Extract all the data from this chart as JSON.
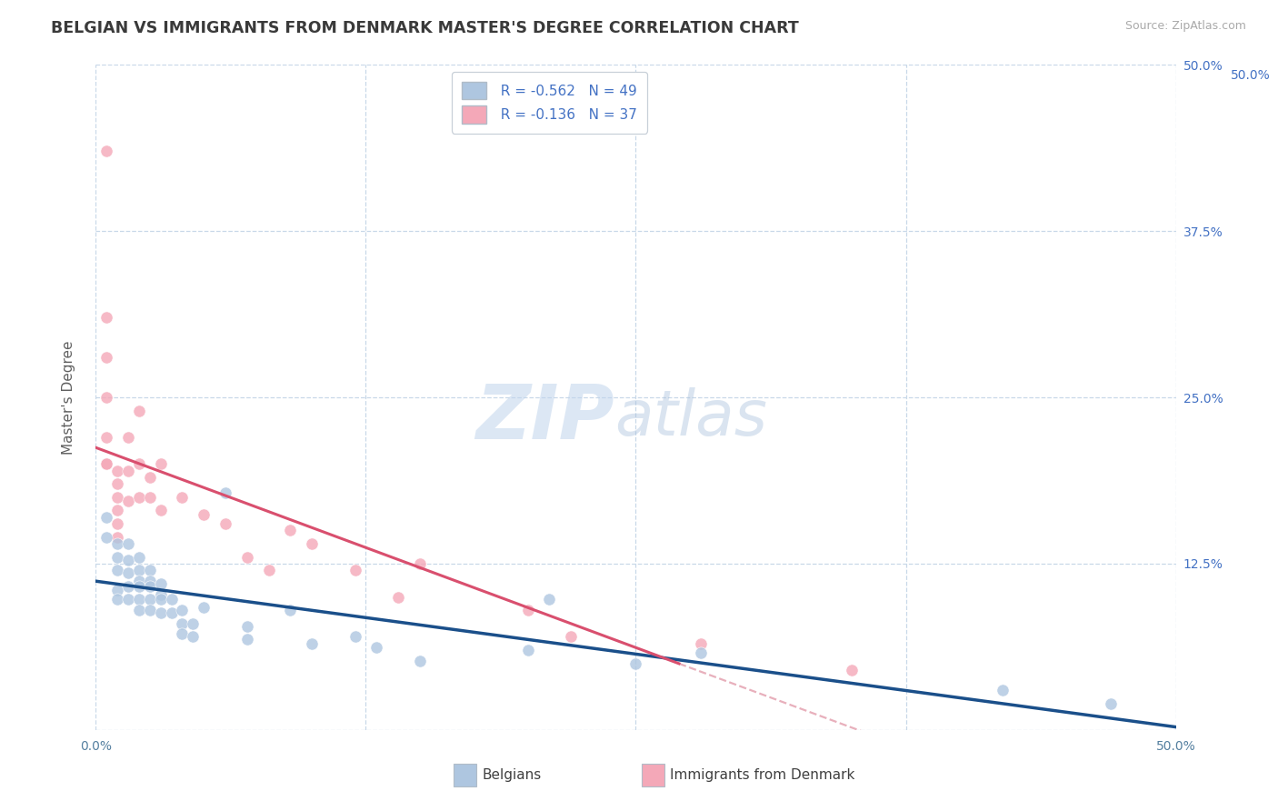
{
  "title": "BELGIAN VS IMMIGRANTS FROM DENMARK MASTER'S DEGREE CORRELATION CHART",
  "source": "Source: ZipAtlas.com",
  "ylabel": "Master's Degree",
  "xlim": [
    0.0,
    0.5
  ],
  "ylim": [
    0.0,
    0.5
  ],
  "xtick_values": [
    0.0,
    0.125,
    0.25,
    0.375,
    0.5
  ],
  "xtick_show_labels": [
    true,
    false,
    false,
    false,
    true
  ],
  "ytick_values": [
    0.0,
    0.125,
    0.25,
    0.375,
    0.5
  ],
  "right_ytick_values": [
    0.125,
    0.25,
    0.375,
    0.5
  ],
  "legend_R1": "R = -0.562",
  "legend_N1": "N = 49",
  "legend_R2": "R = -0.136",
  "legend_N2": "N = 37",
  "color_belgian": "#aec6e0",
  "color_denmark": "#f4a8b8",
  "line_color_belgian": "#1a4f8a",
  "line_color_denmark_solid": "#d94f6e",
  "line_color_denmark_dash": "#e8b0bc",
  "background_color": "#ffffff",
  "grid_color": "#c8d8e8",
  "title_color": "#3a3a3a",
  "axis_label_color": "#606060",
  "right_tick_color": "#4472c4",
  "legend_border_color": "#c8d0d8",
  "legend_text_color": "#4472c4",
  "bottom_label_color": "#404040",
  "belgians_label": "Belgians",
  "denmark_label": "Immigrants from Denmark",
  "belgians_x": [
    0.005,
    0.005,
    0.01,
    0.01,
    0.01,
    0.01,
    0.01,
    0.015,
    0.015,
    0.015,
    0.015,
    0.015,
    0.02,
    0.02,
    0.02,
    0.02,
    0.02,
    0.02,
    0.025,
    0.025,
    0.025,
    0.025,
    0.025,
    0.03,
    0.03,
    0.03,
    0.03,
    0.035,
    0.035,
    0.04,
    0.04,
    0.04,
    0.045,
    0.045,
    0.05,
    0.06,
    0.07,
    0.07,
    0.09,
    0.1,
    0.12,
    0.13,
    0.15,
    0.2,
    0.21,
    0.25,
    0.28,
    0.42,
    0.47
  ],
  "belgians_y": [
    0.145,
    0.16,
    0.14,
    0.13,
    0.12,
    0.105,
    0.098,
    0.14,
    0.128,
    0.118,
    0.108,
    0.098,
    0.13,
    0.12,
    0.112,
    0.108,
    0.098,
    0.09,
    0.12,
    0.112,
    0.108,
    0.098,
    0.09,
    0.11,
    0.102,
    0.098,
    0.088,
    0.098,
    0.088,
    0.09,
    0.08,
    0.072,
    0.08,
    0.07,
    0.092,
    0.178,
    0.078,
    0.068,
    0.09,
    0.065,
    0.07,
    0.062,
    0.052,
    0.06,
    0.098,
    0.05,
    0.058,
    0.03,
    0.02
  ],
  "denmark_x": [
    0.005,
    0.005,
    0.005,
    0.005,
    0.005,
    0.005,
    0.005,
    0.01,
    0.01,
    0.01,
    0.01,
    0.01,
    0.01,
    0.015,
    0.015,
    0.015,
    0.02,
    0.02,
    0.02,
    0.025,
    0.025,
    0.03,
    0.03,
    0.04,
    0.05,
    0.06,
    0.07,
    0.08,
    0.09,
    0.1,
    0.12,
    0.14,
    0.15,
    0.2,
    0.22,
    0.28,
    0.35
  ],
  "denmark_y": [
    0.435,
    0.31,
    0.28,
    0.25,
    0.22,
    0.2,
    0.2,
    0.195,
    0.185,
    0.175,
    0.165,
    0.155,
    0.145,
    0.22,
    0.195,
    0.172,
    0.24,
    0.2,
    0.175,
    0.19,
    0.175,
    0.2,
    0.165,
    0.175,
    0.162,
    0.155,
    0.13,
    0.12,
    0.15,
    0.14,
    0.12,
    0.1,
    0.125,
    0.09,
    0.07,
    0.065,
    0.045
  ]
}
